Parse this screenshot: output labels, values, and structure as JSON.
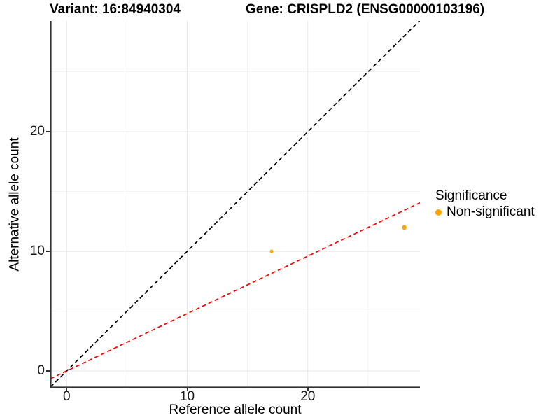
{
  "chart_data": {
    "type": "scatter",
    "titles": {
      "variant": "Variant: 16:84940304",
      "gene": "Gene: CRISPLD2 (ENSG00000103196)"
    },
    "xlabel": "Reference allele count",
    "ylabel": "Alternative allele count",
    "x_ticks": [
      0,
      10,
      20
    ],
    "y_ticks": [
      0,
      10,
      20
    ],
    "x_minor_ticks": [
      5,
      15,
      25
    ],
    "y_minor_ticks": [
      5,
      15,
      25
    ],
    "xlim": [
      -1.35,
      29.3
    ],
    "ylim": [
      -1.4,
      29.25
    ],
    "grid": {
      "major_color": "#e6e6e6",
      "minor_color": "#f0f0f0"
    },
    "axis_color": "#333333",
    "series": [
      {
        "name": "Non-significant",
        "color": "#FFA500",
        "points": [
          {
            "x": 17,
            "y": 10,
            "r": 2.5
          },
          {
            "x": 28,
            "y": 12,
            "r": 3.3
          }
        ]
      }
    ],
    "reference_lines": [
      {
        "name": "identity-line",
        "slope": 1,
        "intercept": 0,
        "color": "#000000",
        "linetype": "dashed"
      },
      {
        "name": "fit-line",
        "slope": 0.48,
        "intercept": 0,
        "color": "#FF0000",
        "linetype": "dashed"
      }
    ],
    "legend": {
      "title": "Significance",
      "position": "right",
      "items": [
        {
          "label": "Non-significant",
          "color": "#FFA500"
        }
      ]
    }
  }
}
